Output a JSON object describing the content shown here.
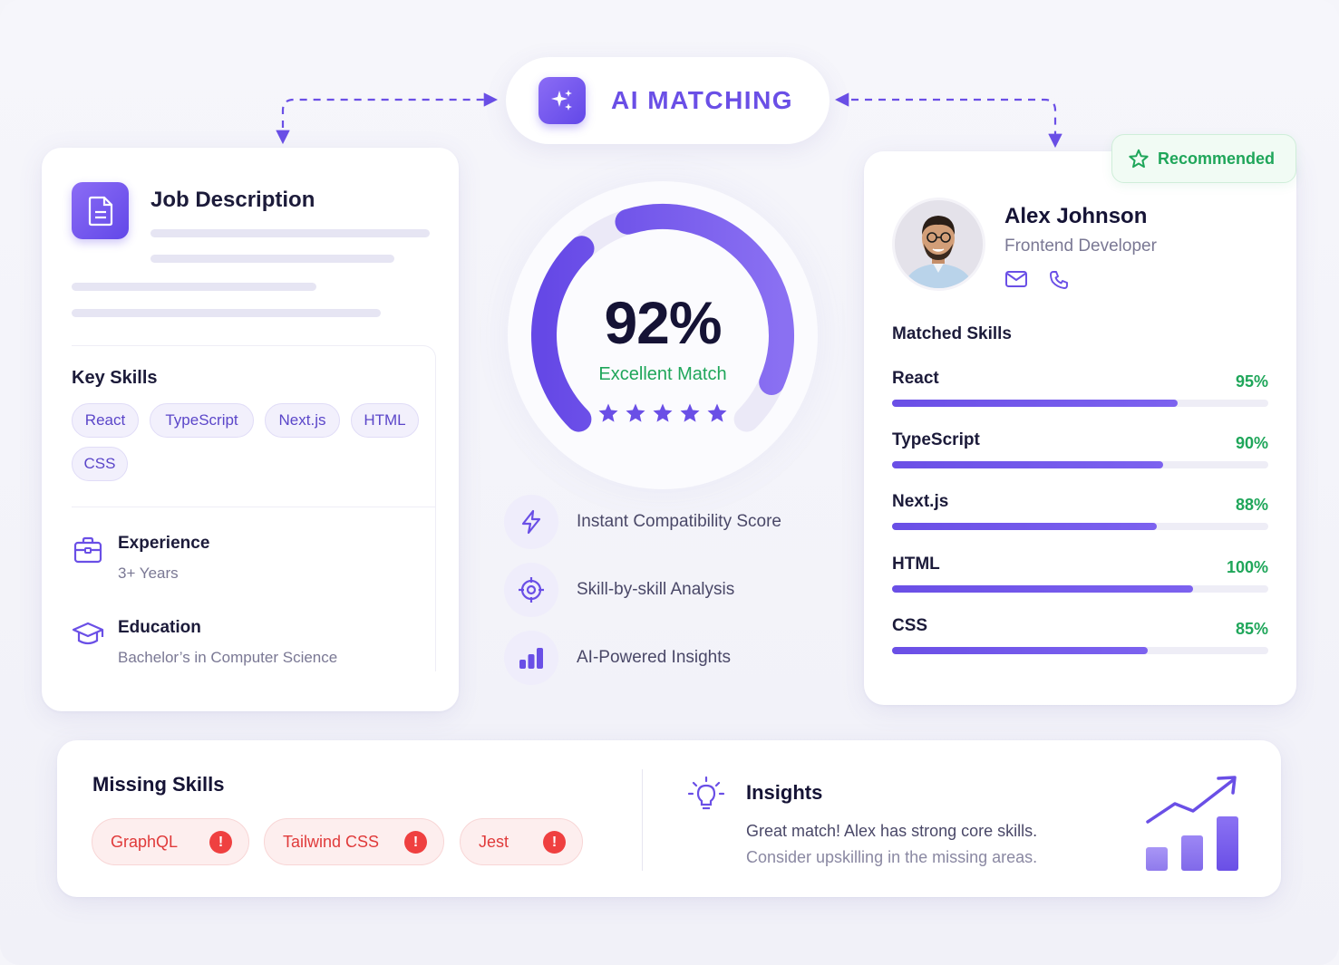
{
  "header": {
    "title": "AI MATCHING",
    "icon": "sparkles-icon"
  },
  "job": {
    "title": "Job Description",
    "icon": "document-icon",
    "key_skills_label": "Key Skills",
    "key_skills": [
      "React",
      "TypeScript",
      "Next.js",
      "HTML",
      "CSS"
    ],
    "experience": {
      "label": "Experience",
      "value": "3+ Years",
      "icon": "briefcase-icon"
    },
    "education": {
      "label": "Education",
      "value": "Bachelor’s in Computer Science",
      "icon": "graduation-cap-icon"
    }
  },
  "match": {
    "score_text": "92%",
    "score": 0.92,
    "label": "Excellent Match",
    "stars": 5,
    "colors": {
      "accent": "#6a4fe6",
      "success": "#1fa65a"
    }
  },
  "features": [
    {
      "label": "Instant Compatibility Score",
      "icon": "lightning-icon"
    },
    {
      "label": "Skill-by-skill Analysis",
      "icon": "target-icon"
    },
    {
      "label": "AI-Powered Insights",
      "icon": "bar-chart-icon"
    }
  ],
  "candidate": {
    "badge": "Recommended",
    "name": "Alex Johnson",
    "role": "Frontend Developer",
    "matched_skills_label": "Matched Skills",
    "skills": [
      {
        "name": "React",
        "pct_text": "95%",
        "pct": 0.95
      },
      {
        "name": "TypeScript",
        "pct_text": "90%",
        "pct": 0.9
      },
      {
        "name": "Next.js",
        "pct_text": "88%",
        "pct": 0.88
      },
      {
        "name": "HTML",
        "pct_text": "100%",
        "pct": 1.0
      },
      {
        "name": "CSS",
        "pct_text": "85%",
        "pct": 0.85
      }
    ]
  },
  "missing": {
    "label": "Missing Skills",
    "skills": [
      "GraphQL",
      "Tailwind CSS",
      "Jest"
    ],
    "color": "#e03a3a"
  },
  "insights": {
    "title": "Insights",
    "line1": "Great match! Alex has strong core skills.",
    "line2": "Consider upskilling in the missing areas."
  }
}
